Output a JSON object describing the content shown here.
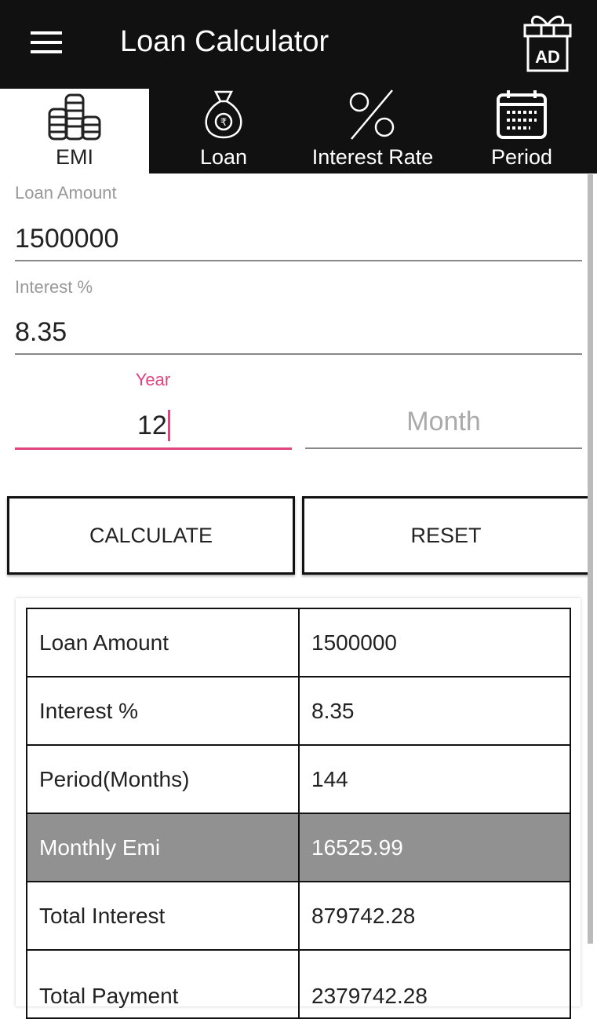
{
  "appbar": {
    "title": "Loan Calculator",
    "ad_icon_text": "AD"
  },
  "tabs": [
    {
      "label": "EMI",
      "icon": "coins-icon",
      "active": true
    },
    {
      "label": "Loan",
      "icon": "money-bag-icon"
    },
    {
      "label": "Interest Rate",
      "icon": "percent-icon"
    },
    {
      "label": "Period",
      "icon": "calendar-icon"
    }
  ],
  "form": {
    "loan_amount_label": "Loan Amount",
    "loan_amount": "1500000",
    "interest_label": "Interest %",
    "interest": "8.35",
    "year_label": "Year",
    "year": "12",
    "month_placeholder": "Month"
  },
  "buttons": {
    "calculate": "CALCULATE",
    "reset": "RESET"
  },
  "results": [
    {
      "label": "Loan Amount",
      "value": "1500000"
    },
    {
      "label": "Interest %",
      "value": "8.35"
    },
    {
      "label": "Period(Months)",
      "value": "144"
    },
    {
      "label": "Monthly Emi",
      "value": "16525.99",
      "highlight": true
    },
    {
      "label": "Total Interest",
      "value": "879742.28"
    },
    {
      "label": "Total Payment",
      "value": "2379742.28"
    }
  ],
  "colors": {
    "accent": "#e0447f",
    "appbar": "#111111",
    "highlight_row": "#919191"
  }
}
